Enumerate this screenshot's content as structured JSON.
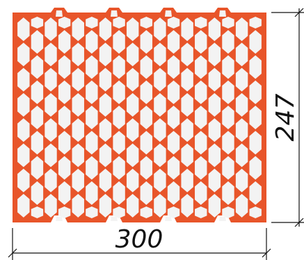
{
  "drawing": {
    "width_value": "300",
    "height_value": "247"
  },
  "colors": {
    "block": "#e8552a",
    "cavity": "#f3f3f3",
    "dimension_line": "#111111"
  },
  "block": {
    "cavity_columns": 18,
    "cavity_rows": 8,
    "top_tongues": 4,
    "bottom_tongues": 4
  }
}
